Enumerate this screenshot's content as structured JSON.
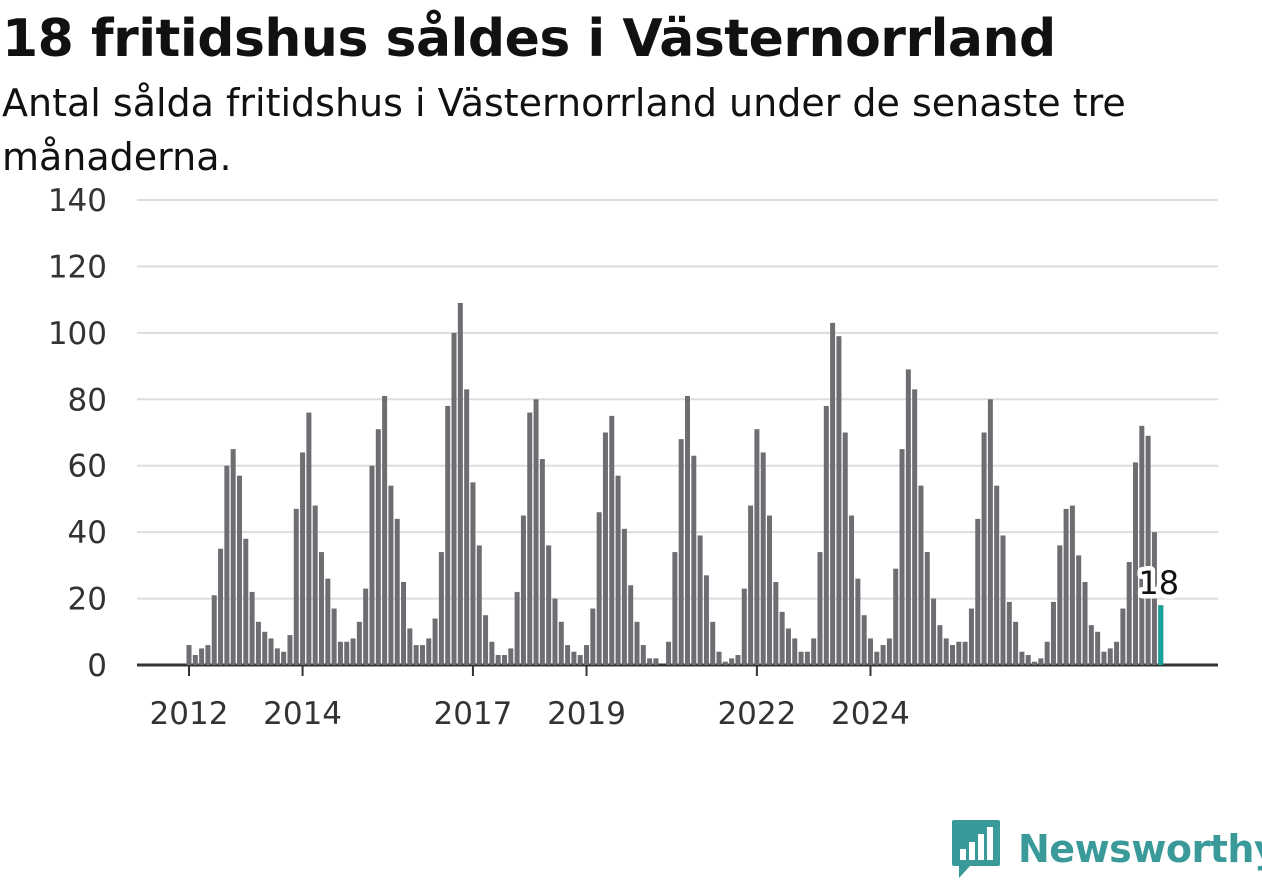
{
  "title": "18 fritidshus såldes i Västernorrland",
  "subtitle": "Antal sålda fritidshus i Västernorrland under de senaste tre månaderna.",
  "brand": {
    "name": "Newsworthy",
    "icon": "bar-chart-speech-bubble-icon",
    "color": "#3a9a9a"
  },
  "chart_data": {
    "type": "bar",
    "title": "18 fritidshus såldes i Västernorrland",
    "subtitle": "Antal sålda fritidshus i Västernorrland under de senaste tre månaderna.",
    "xlabel": "",
    "ylabel": "",
    "ylim": [
      0,
      140
    ],
    "yticks": [
      0,
      20,
      40,
      60,
      80,
      100,
      120,
      140
    ],
    "grid": true,
    "xticks": [
      {
        "label": "2012",
        "index": 0
      },
      {
        "label": "2014",
        "index": 18
      },
      {
        "label": "2017",
        "index": 45
      },
      {
        "label": "2019",
        "index": 63
      },
      {
        "label": "2022",
        "index": 90
      },
      {
        "label": "2024",
        "index": 108
      }
    ],
    "values": [
      6,
      3,
      5,
      6,
      21,
      35,
      60,
      65,
      57,
      38,
      22,
      13,
      10,
      8,
      5,
      4,
      9,
      47,
      64,
      76,
      48,
      34,
      26,
      17,
      7,
      7,
      8,
      13,
      23,
      60,
      71,
      81,
      54,
      44,
      25,
      11,
      6,
      6,
      8,
      14,
      34,
      78,
      100,
      109,
      83,
      55,
      36,
      15,
      7,
      3,
      3,
      5,
      22,
      45,
      76,
      80,
      62,
      36,
      20,
      13,
      6,
      4,
      3,
      6,
      17,
      46,
      70,
      75,
      57,
      41,
      24,
      13,
      6,
      2,
      2,
      0,
      7,
      34,
      68,
      81,
      63,
      39,
      27,
      13,
      4,
      1,
      2,
      3,
      23,
      48,
      71,
      64,
      45,
      25,
      16,
      11,
      8,
      4,
      4,
      8,
      34,
      78,
      103,
      99,
      70,
      45,
      26,
      15,
      8,
      4,
      6,
      8,
      29,
      65,
      89,
      83,
      54,
      34,
      20,
      12,
      8,
      6,
      7,
      7,
      17,
      44,
      70,
      80,
      54,
      39,
      19,
      13,
      4,
      3,
      1,
      2,
      7,
      19,
      36,
      47,
      48,
      33,
      25,
      12,
      10,
      4,
      5,
      7,
      17,
      31,
      61,
      72,
      69,
      40,
      18
    ],
    "highlight": {
      "index": 154,
      "value": 18,
      "label": "18",
      "color": "#1aa29a"
    },
    "bar_color": "#6e6e72",
    "axis_color": "#333333",
    "grid_color": "#dddddd"
  }
}
